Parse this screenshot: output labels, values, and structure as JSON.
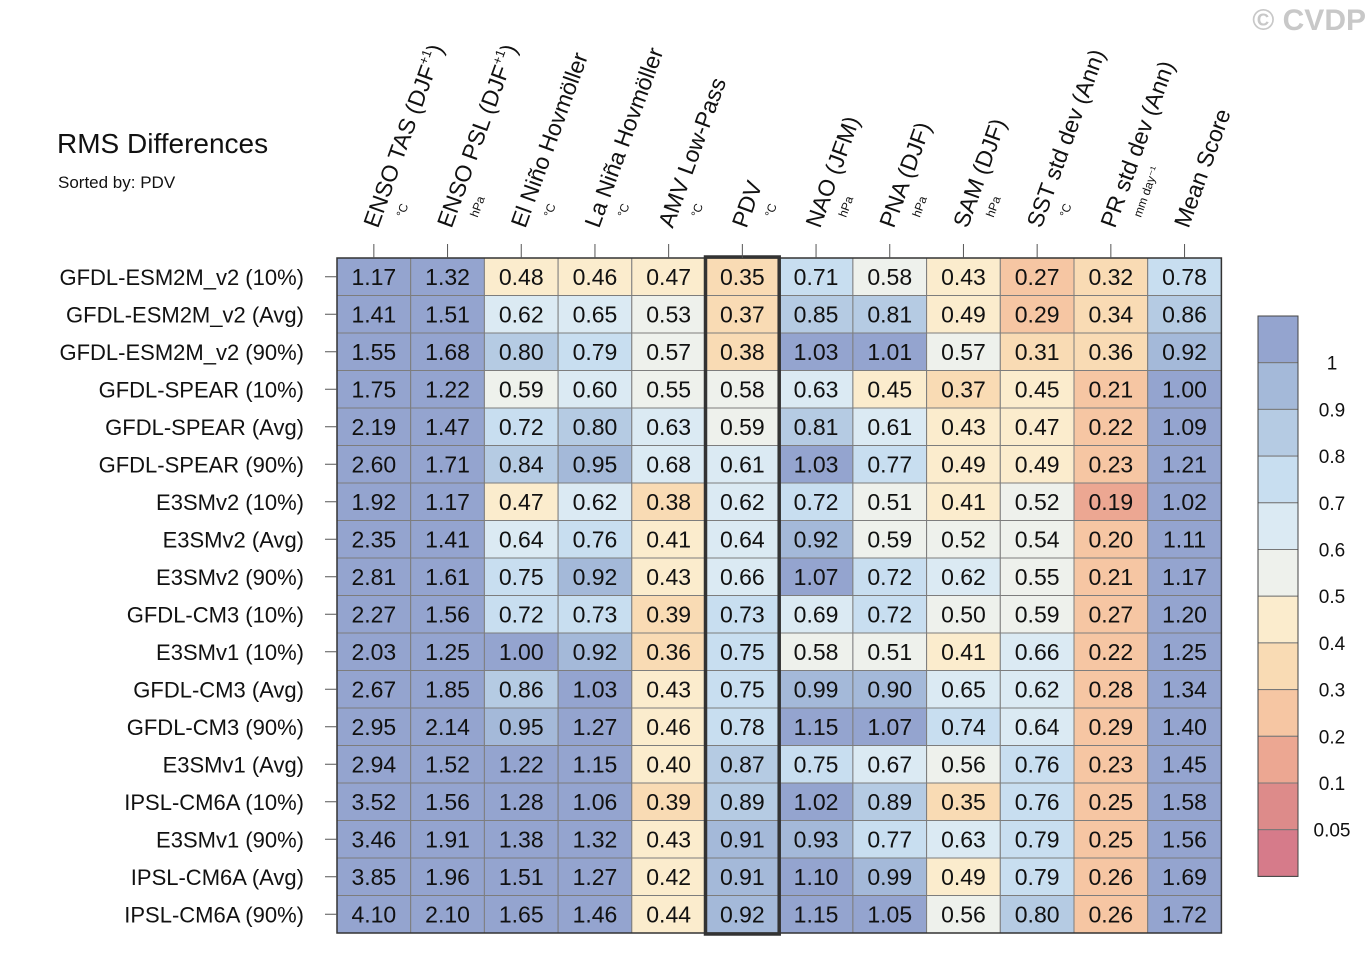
{
  "copyright": "© CVDP",
  "chart_data": {
    "type": "heatmap",
    "title": "RMS Differences",
    "subtitle": "Sorted by: PDV",
    "highlight_column": "PDV",
    "columns": [
      {
        "label": "ENSO TAS (DJF",
        "sup": "+1",
        "close": ")",
        "unit": "°C"
      },
      {
        "label": "ENSO PSL (DJF",
        "sup": "+1",
        "close": ")",
        "unit": "hPa"
      },
      {
        "label": "El Niño Hovmöller",
        "sup": "",
        "close": "",
        "unit": "°C"
      },
      {
        "label": "La Niña Hovmöller",
        "sup": "",
        "close": "",
        "unit": "°C"
      },
      {
        "label": "AMV Low-Pass",
        "sup": "",
        "close": "",
        "unit": "°C"
      },
      {
        "label": "PDV",
        "sup": "",
        "close": "",
        "unit": "°C"
      },
      {
        "label": "NAO (JFM)",
        "sup": "",
        "close": "",
        "unit": "hPa"
      },
      {
        "label": "PNA (DJF)",
        "sup": "",
        "close": "",
        "unit": "hPa"
      },
      {
        "label": "SAM (DJF)",
        "sup": "",
        "close": "",
        "unit": "hPa"
      },
      {
        "label": "SST std dev (Ann)",
        "sup": "",
        "close": "",
        "unit": "°C"
      },
      {
        "label": "PR std dev (Ann)",
        "sup": "",
        "close": "",
        "unit": "mm day⁻¹"
      },
      {
        "label": "Mean Score",
        "sup": "",
        "close": "",
        "unit": ""
      }
    ],
    "rows": [
      "GFDL-ESM2M_v2 (10%)",
      "GFDL-ESM2M_v2 (Avg)",
      "GFDL-ESM2M_v2 (90%)",
      "GFDL-SPEAR (10%)",
      "GFDL-SPEAR (Avg)",
      "GFDL-SPEAR (90%)",
      "E3SMv2 (10%)",
      "E3SMv2 (Avg)",
      "E3SMv2 (90%)",
      "GFDL-CM3 (10%)",
      "E3SMv1 (10%)",
      "GFDL-CM3 (Avg)",
      "GFDL-CM3 (90%)",
      "E3SMv1 (Avg)",
      "IPSL-CM6A (10%)",
      "E3SMv1 (90%)",
      "IPSL-CM6A (Avg)",
      "IPSL-CM6A (90%)"
    ],
    "values": [
      [
        "1.17",
        "1.32",
        "0.48",
        "0.46",
        "0.47",
        "0.35",
        "0.71",
        "0.58",
        "0.43",
        "0.27",
        "0.32",
        "0.78"
      ],
      [
        "1.41",
        "1.51",
        "0.62",
        "0.65",
        "0.53",
        "0.37",
        "0.85",
        "0.81",
        "0.49",
        "0.29",
        "0.34",
        "0.86"
      ],
      [
        "1.55",
        "1.68",
        "0.80",
        "0.79",
        "0.57",
        "0.38",
        "1.03",
        "1.01",
        "0.57",
        "0.31",
        "0.36",
        "0.92"
      ],
      [
        "1.75",
        "1.22",
        "0.59",
        "0.60",
        "0.55",
        "0.58",
        "0.63",
        "0.45",
        "0.37",
        "0.45",
        "0.21",
        "1.00"
      ],
      [
        "2.19",
        "1.47",
        "0.72",
        "0.80",
        "0.63",
        "0.59",
        "0.81",
        "0.61",
        "0.43",
        "0.47",
        "0.22",
        "1.09"
      ],
      [
        "2.60",
        "1.71",
        "0.84",
        "0.95",
        "0.68",
        "0.61",
        "1.03",
        "0.77",
        "0.49",
        "0.49",
        "0.23",
        "1.21"
      ],
      [
        "1.92",
        "1.17",
        "0.47",
        "0.62",
        "0.38",
        "0.62",
        "0.72",
        "0.51",
        "0.41",
        "0.52",
        "0.19",
        "1.02"
      ],
      [
        "2.35",
        "1.41",
        "0.64",
        "0.76",
        "0.41",
        "0.64",
        "0.92",
        "0.59",
        "0.52",
        "0.54",
        "0.20",
        "1.11"
      ],
      [
        "2.81",
        "1.61",
        "0.75",
        "0.92",
        "0.43",
        "0.66",
        "1.07",
        "0.72",
        "0.62",
        "0.55",
        "0.21",
        "1.17"
      ],
      [
        "2.27",
        "1.56",
        "0.72",
        "0.73",
        "0.39",
        "0.73",
        "0.69",
        "0.72",
        "0.50",
        "0.59",
        "0.27",
        "1.20"
      ],
      [
        "2.03",
        "1.25",
        "1.00",
        "0.92",
        "0.36",
        "0.75",
        "0.58",
        "0.51",
        "0.41",
        "0.66",
        "0.22",
        "1.25"
      ],
      [
        "2.67",
        "1.85",
        "0.86",
        "1.03",
        "0.43",
        "0.75",
        "0.99",
        "0.90",
        "0.65",
        "0.62",
        "0.28",
        "1.34"
      ],
      [
        "2.95",
        "2.14",
        "0.95",
        "1.27",
        "0.46",
        "0.78",
        "1.15",
        "1.07",
        "0.74",
        "0.64",
        "0.29",
        "1.40"
      ],
      [
        "2.94",
        "1.52",
        "1.22",
        "1.15",
        "0.40",
        "0.87",
        "0.75",
        "0.67",
        "0.56",
        "0.76",
        "0.23",
        "1.45"
      ],
      [
        "3.52",
        "1.56",
        "1.28",
        "1.06",
        "0.39",
        "0.89",
        "1.02",
        "0.89",
        "0.35",
        "0.76",
        "0.25",
        "1.58"
      ],
      [
        "3.46",
        "1.91",
        "1.38",
        "1.32",
        "0.43",
        "0.91",
        "0.93",
        "0.77",
        "0.63",
        "0.79",
        "0.25",
        "1.56"
      ],
      [
        "3.85",
        "1.96",
        "1.51",
        "1.27",
        "0.42",
        "0.91",
        "1.10",
        "0.99",
        "0.49",
        "0.79",
        "0.26",
        "1.69"
      ],
      [
        "4.10",
        "2.10",
        "1.65",
        "1.46",
        "0.44",
        "0.92",
        "1.15",
        "1.05",
        "0.56",
        "0.80",
        "0.26",
        "1.72"
      ]
    ],
    "colorbar": {
      "levels": [
        "1",
        "0.9",
        "0.8",
        "0.7",
        "0.6",
        "0.5",
        "0.4",
        "0.3",
        "0.2",
        "0.1",
        "0.05"
      ],
      "thresholds": [
        1.0,
        0.9,
        0.8,
        0.7,
        0.6,
        0.5,
        0.4,
        0.3,
        0.2,
        0.1,
        0.05
      ],
      "colors": [
        "#94a4cf",
        "#a4b9d9",
        "#b5cbe3",
        "#c8def0",
        "#dbeaf3",
        "#eef1ec",
        "#fbeccd",
        "#f9dbb4",
        "#f6c6a3",
        "#eca792",
        "#dd8b8a",
        "#d67b8a"
      ]
    }
  }
}
